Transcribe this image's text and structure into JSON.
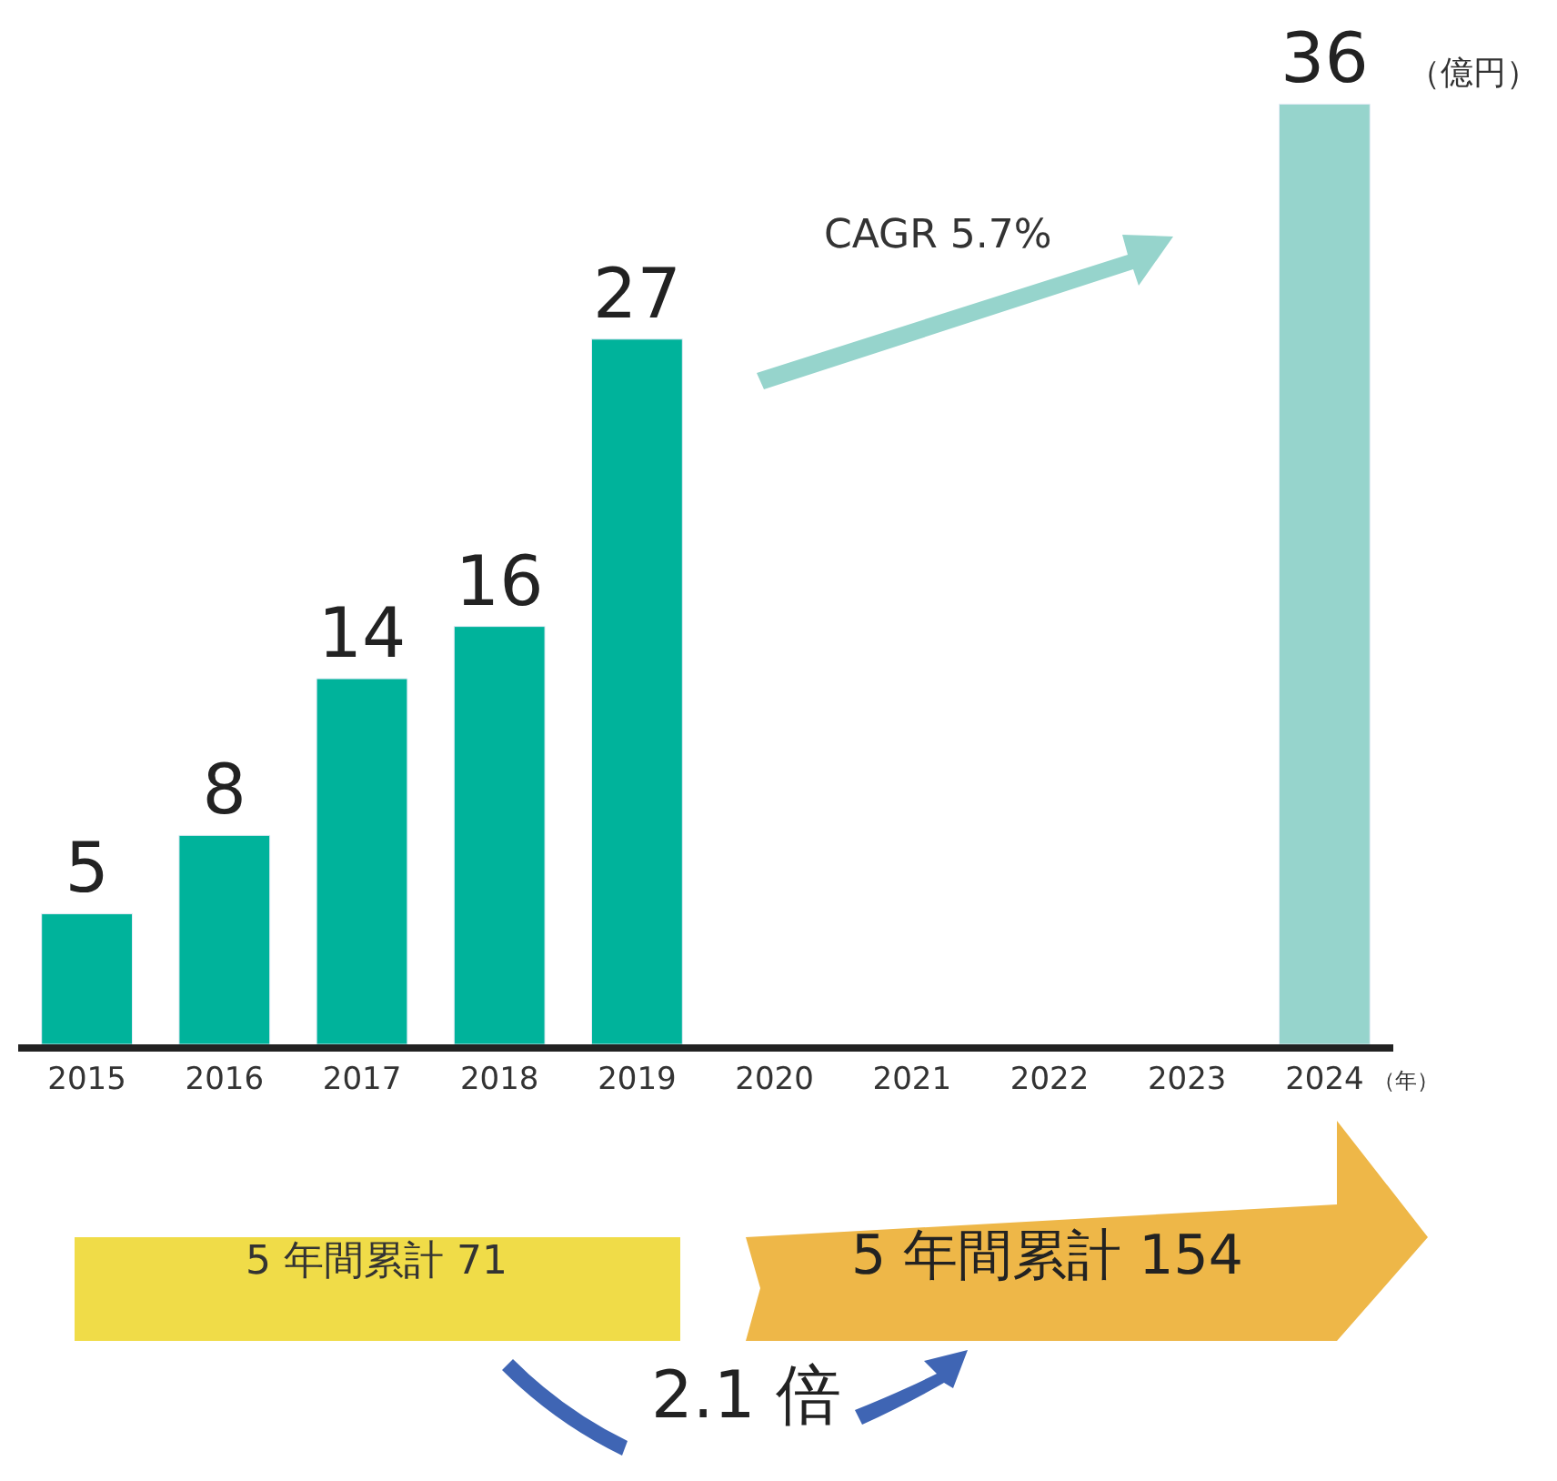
{
  "chart_data": {
    "type": "bar",
    "categories": [
      "2015",
      "2016",
      "2017",
      "2018",
      "2019",
      "2020",
      "2021",
      "2022",
      "2023",
      "2024"
    ],
    "values": [
      5,
      8,
      14,
      16,
      27,
      null,
      null,
      null,
      null,
      36
    ],
    "colors": [
      "#00b39b",
      "#00b39b",
      "#00b39b",
      "#00b39b",
      "#00b39b",
      "#00b39b",
      "#00b39b",
      "#00b39b",
      "#00b39b",
      "#96d4cc"
    ],
    "data_labels": true,
    "legend": false,
    "annotations": [
      "CAGR 5.7%",
      "（億円）",
      "（年）",
      "5 年間累計 71",
      "5 年間累計 154",
      "2.1 倍"
    ]
  }
}
